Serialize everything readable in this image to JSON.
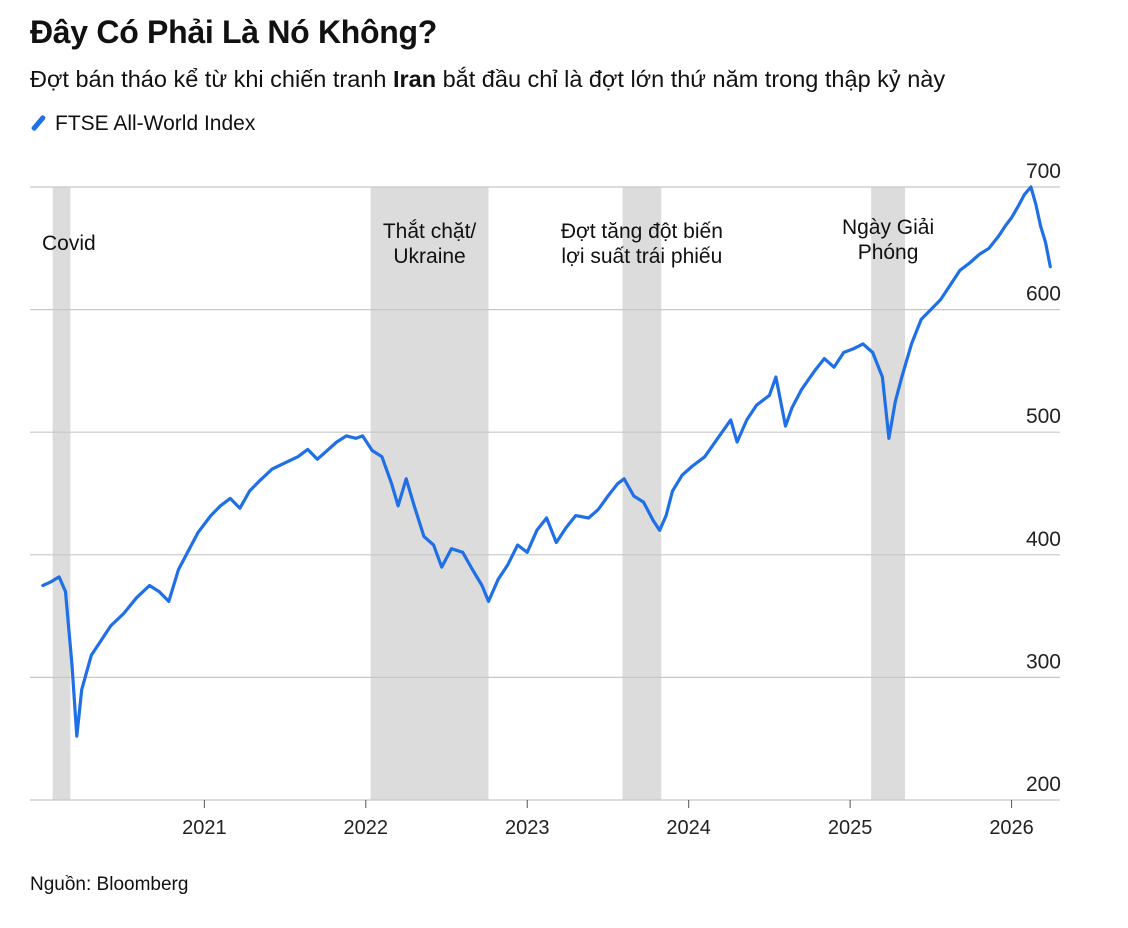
{
  "title": "Đây Có Phải Là Nó Không?",
  "subtitle": {
    "before": "Đợt bán tháo kể từ khi chiến tranh ",
    "bold": "Iran",
    "after": " bắt đầu chỉ là đợt lớn thứ năm trong thập kỷ này"
  },
  "source": "Nguồn: Bloomberg",
  "colors": {
    "line": "#1f6fe6",
    "shade": "#dcdcdc",
    "grid": "#c8c8c8"
  },
  "chart_data": {
    "type": "line",
    "title": "Đây Có Phải Là Nó Không?",
    "xlabel": "",
    "ylabel": "",
    "xlim": [
      2019.92,
      2026.3
    ],
    "ylim": [
      200,
      700
    ],
    "yticks": [
      200,
      300,
      400,
      500,
      600,
      700
    ],
    "xticks": [
      {
        "label": "2021",
        "x": 2021.0
      },
      {
        "label": "2022",
        "x": 2022.0
      },
      {
        "label": "2023",
        "x": 2023.0
      },
      {
        "label": "2024",
        "x": 2024.0
      },
      {
        "label": "2025",
        "x": 2025.0
      },
      {
        "label": "2026",
        "x": 2026.0
      }
    ],
    "grid": true,
    "legend_position": "top-left",
    "series": [
      {
        "name": "FTSE All-World Index",
        "points": [
          [
            2020.0,
            375
          ],
          [
            2020.05,
            378
          ],
          [
            2020.1,
            382
          ],
          [
            2020.14,
            370
          ],
          [
            2020.18,
            310
          ],
          [
            2020.21,
            252
          ],
          [
            2020.24,
            290
          ],
          [
            2020.3,
            318
          ],
          [
            2020.36,
            330
          ],
          [
            2020.42,
            342
          ],
          [
            2020.5,
            352
          ],
          [
            2020.58,
            365
          ],
          [
            2020.66,
            375
          ],
          [
            2020.72,
            370
          ],
          [
            2020.78,
            362
          ],
          [
            2020.84,
            388
          ],
          [
            2020.9,
            403
          ],
          [
            2020.96,
            418
          ],
          [
            2021.04,
            432
          ],
          [
            2021.1,
            440
          ],
          [
            2021.16,
            446
          ],
          [
            2021.22,
            438
          ],
          [
            2021.28,
            452
          ],
          [
            2021.34,
            460
          ],
          [
            2021.42,
            470
          ],
          [
            2021.5,
            475
          ],
          [
            2021.58,
            480
          ],
          [
            2021.64,
            486
          ],
          [
            2021.7,
            478
          ],
          [
            2021.76,
            485
          ],
          [
            2021.82,
            492
          ],
          [
            2021.88,
            497
          ],
          [
            2021.94,
            495
          ],
          [
            2021.98,
            497
          ],
          [
            2022.04,
            485
          ],
          [
            2022.1,
            480
          ],
          [
            2022.16,
            458
          ],
          [
            2022.2,
            440
          ],
          [
            2022.25,
            462
          ],
          [
            2022.3,
            440
          ],
          [
            2022.36,
            415
          ],
          [
            2022.42,
            408
          ],
          [
            2022.47,
            390
          ],
          [
            2022.53,
            405
          ],
          [
            2022.6,
            402
          ],
          [
            2022.66,
            388
          ],
          [
            2022.72,
            375
          ],
          [
            2022.76,
            362
          ],
          [
            2022.82,
            380
          ],
          [
            2022.88,
            392
          ],
          [
            2022.94,
            408
          ],
          [
            2023.0,
            402
          ],
          [
            2023.06,
            420
          ],
          [
            2023.12,
            430
          ],
          [
            2023.18,
            410
          ],
          [
            2023.24,
            422
          ],
          [
            2023.3,
            432
          ],
          [
            2023.38,
            430
          ],
          [
            2023.44,
            437
          ],
          [
            2023.5,
            448
          ],
          [
            2023.56,
            458
          ],
          [
            2023.6,
            462
          ],
          [
            2023.66,
            448
          ],
          [
            2023.72,
            443
          ],
          [
            2023.78,
            428
          ],
          [
            2023.82,
            420
          ],
          [
            2023.86,
            432
          ],
          [
            2023.9,
            452
          ],
          [
            2023.96,
            465
          ],
          [
            2024.02,
            472
          ],
          [
            2024.1,
            480
          ],
          [
            2024.18,
            495
          ],
          [
            2024.26,
            510
          ],
          [
            2024.3,
            492
          ],
          [
            2024.36,
            510
          ],
          [
            2024.42,
            522
          ],
          [
            2024.5,
            530
          ],
          [
            2024.54,
            545
          ],
          [
            2024.6,
            505
          ],
          [
            2024.64,
            520
          ],
          [
            2024.7,
            535
          ],
          [
            2024.78,
            550
          ],
          [
            2024.84,
            560
          ],
          [
            2024.9,
            553
          ],
          [
            2024.96,
            565
          ],
          [
            2025.02,
            568
          ],
          [
            2025.08,
            572
          ],
          [
            2025.14,
            565
          ],
          [
            2025.2,
            545
          ],
          [
            2025.24,
            495
          ],
          [
            2025.28,
            525
          ],
          [
            2025.32,
            545
          ],
          [
            2025.38,
            572
          ],
          [
            2025.44,
            592
          ],
          [
            2025.5,
            600
          ],
          [
            2025.56,
            608
          ],
          [
            2025.62,
            620
          ],
          [
            2025.68,
            632
          ],
          [
            2025.74,
            638
          ],
          [
            2025.8,
            645
          ],
          [
            2025.86,
            650
          ],
          [
            2025.92,
            660
          ],
          [
            2025.96,
            668
          ],
          [
            2026.0,
            675
          ],
          [
            2026.04,
            684
          ],
          [
            2026.08,
            694
          ],
          [
            2026.12,
            700
          ],
          [
            2026.15,
            686
          ],
          [
            2026.18,
            668
          ],
          [
            2026.21,
            655
          ],
          [
            2026.24,
            635
          ]
        ]
      }
    ],
    "annotations": [
      {
        "lines": [
          "Covid"
        ],
        "start": 2020.06,
        "end": 2020.17,
        "align": "left"
      },
      {
        "lines": [
          "Thắt chặt/",
          "Ukraine"
        ],
        "start": 2022.03,
        "end": 2022.76,
        "align": "center"
      },
      {
        "lines": [
          "Đợt tăng đột biến",
          "lợi suất trái phiếu"
        ],
        "start": 2023.59,
        "end": 2023.83,
        "align": "center"
      },
      {
        "lines": [
          "Ngày Giải",
          "Phóng"
        ],
        "start": 2025.13,
        "end": 2025.34,
        "align": "center"
      }
    ]
  }
}
